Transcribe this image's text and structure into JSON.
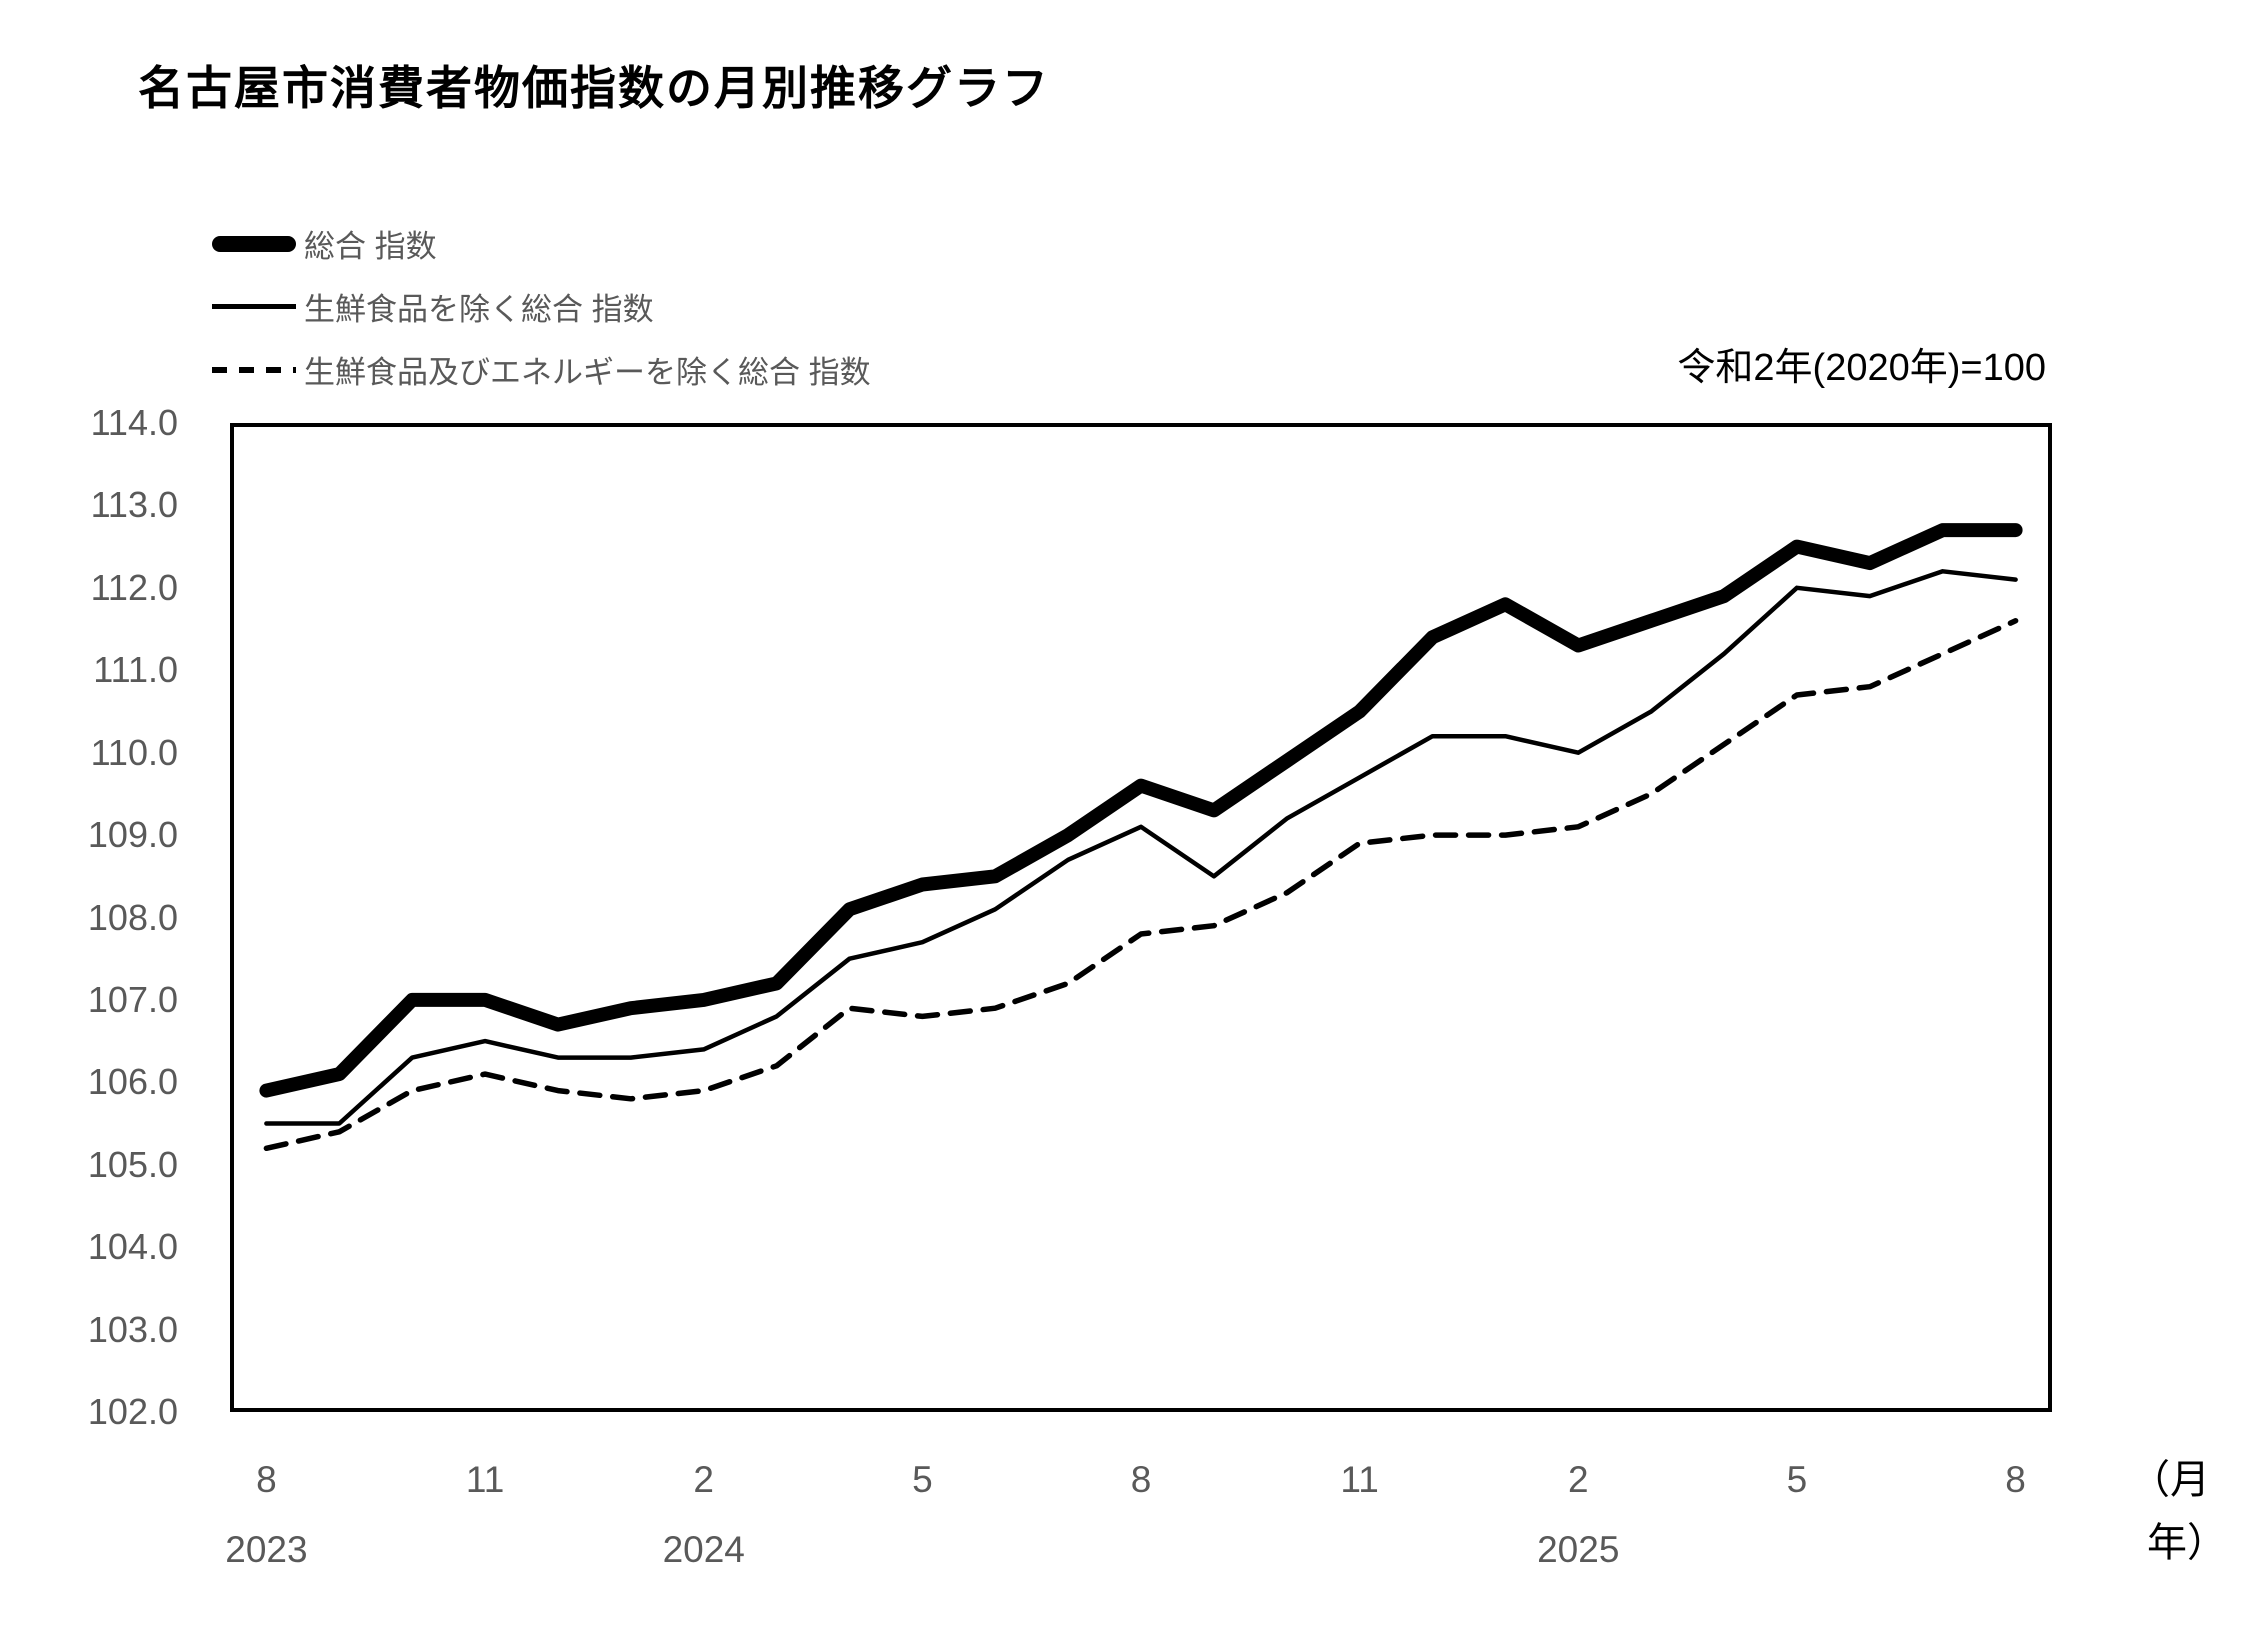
{
  "page": {
    "title": "名古屋市消費者物価指数の月別推移グラフ",
    "note": "令和2年(2020年)=100"
  },
  "axis_units": {
    "month": "（月",
    "year": "年）"
  },
  "chart_data": {
    "type": "line",
    "title": "名古屋市消費者物価指数の月別推移グラフ",
    "note": "令和2年(2020年)=100",
    "grid": false,
    "legend_position": "top-left",
    "ylim": [
      102.0,
      114.0
    ],
    "ytick_step": 1.0,
    "yticks": [
      "114.0",
      "113.0",
      "112.0",
      "111.0",
      "110.0",
      "109.0",
      "108.0",
      "107.0",
      "106.0",
      "105.0",
      "104.0",
      "103.0",
      "102.0"
    ],
    "x_months": [
      "8",
      "9",
      "10",
      "11",
      "12",
      "1",
      "2",
      "3",
      "4",
      "5",
      "6",
      "7",
      "8",
      "9",
      "10",
      "11",
      "12",
      "1",
      "2",
      "3",
      "4",
      "5",
      "6",
      "7",
      "8"
    ],
    "xticks": [
      {
        "index": 0,
        "label": "8"
      },
      {
        "index": 3,
        "label": "11"
      },
      {
        "index": 6,
        "label": "2"
      },
      {
        "index": 9,
        "label": "5"
      },
      {
        "index": 12,
        "label": "8"
      },
      {
        "index": 15,
        "label": "11"
      },
      {
        "index": 18,
        "label": "2"
      },
      {
        "index": 21,
        "label": "5"
      },
      {
        "index": 24,
        "label": "8"
      }
    ],
    "year_labels": [
      {
        "index": 0,
        "label": "2023"
      },
      {
        "index": 6,
        "label": "2024"
      },
      {
        "index": 18,
        "label": "2025"
      }
    ],
    "series": [
      {
        "name": "総合 指数",
        "style": "thick-solid",
        "values": [
          105.9,
          106.1,
          107.0,
          107.0,
          106.7,
          106.9,
          107.0,
          107.2,
          108.1,
          108.4,
          108.5,
          109.0,
          109.6,
          109.3,
          109.9,
          110.5,
          111.4,
          111.8,
          111.3,
          111.6,
          111.9,
          112.5,
          112.3,
          112.7,
          112.7
        ]
      },
      {
        "name": "生鮮食品を除く総合 指数",
        "style": "thin-solid",
        "values": [
          105.5,
          105.5,
          106.3,
          106.5,
          106.3,
          106.3,
          106.4,
          106.8,
          107.5,
          107.7,
          108.1,
          108.7,
          109.1,
          108.5,
          109.2,
          109.7,
          110.2,
          110.2,
          110.0,
          110.5,
          111.2,
          112.0,
          111.9,
          112.2,
          112.1
        ]
      },
      {
        "name": "生鮮食品及びエネルギーを除く総合 指数",
        "style": "dashed",
        "values": [
          105.2,
          105.4,
          105.9,
          106.1,
          105.9,
          105.8,
          105.9,
          106.2,
          106.9,
          106.8,
          106.9,
          107.2,
          107.8,
          107.9,
          108.3,
          108.9,
          109.0,
          109.0,
          109.1,
          109.5,
          110.1,
          110.7,
          110.8,
          111.2,
          111.6
        ]
      }
    ]
  },
  "colors": {
    "line": "#000000",
    "axis_text": "#595959",
    "title_text": "#000000",
    "background": "#ffffff"
  }
}
